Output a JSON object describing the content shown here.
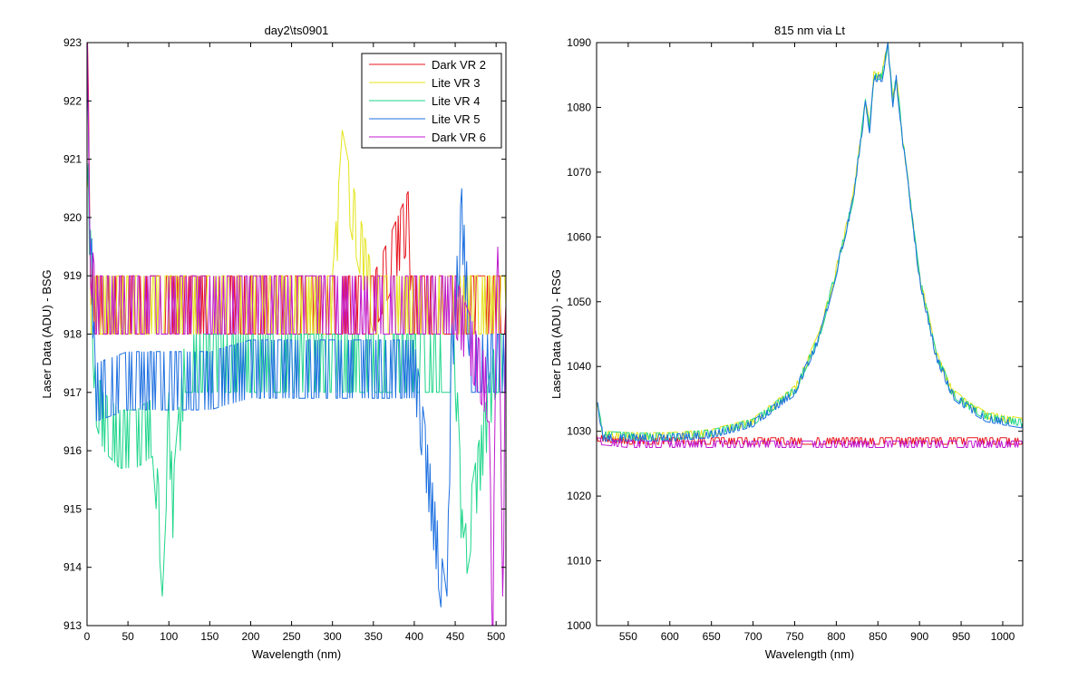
{
  "chart_data": [
    {
      "type": "line",
      "title": "day2\\ts0901",
      "xlabel": "Wavelength (nm)",
      "ylabel": "Laser Data (ADU) - BSG",
      "xlim": [
        0,
        512
      ],
      "ylim": [
        913,
        923
      ],
      "xticks": [
        0,
        50,
        100,
        150,
        200,
        250,
        300,
        350,
        400,
        450,
        500
      ],
      "yticks": [
        913,
        914,
        915,
        916,
        917,
        918,
        919,
        920,
        921,
        922,
        923
      ],
      "legend": "top-right",
      "series": [
        {
          "name": "Dark VR 2",
          "color": "#e8141e",
          "x": [
            0,
            5,
            10,
            50,
            100,
            150,
            200,
            250,
            300,
            350,
            394,
            396,
            420,
            450,
            512
          ],
          "y": [
            923,
            919,
            918.5,
            918.5,
            918.5,
            918.5,
            918.5,
            918.5,
            918.5,
            918.5,
            920,
            918.5,
            918.5,
            918.5,
            918.5
          ]
        },
        {
          "name": "Lite VR 3",
          "color": "#e4e419",
          "x": [
            0,
            5,
            10,
            50,
            100,
            150,
            200,
            250,
            300,
            312,
            326,
            350,
            400,
            450,
            512
          ],
          "y": [
            921,
            918.5,
            918.5,
            918.5,
            918.5,
            918.5,
            918.5,
            918.5,
            918.5,
            921,
            920,
            918.5,
            918.5,
            918.5,
            918.5
          ]
        },
        {
          "name": "Lite VR 4",
          "color": "#1dd68a",
          "x": [
            0,
            10,
            20,
            40,
            60,
            80,
            92,
            100,
            105,
            120,
            150,
            200,
            250,
            300,
            350,
            400,
            450,
            460,
            500,
            512
          ],
          "y": [
            921,
            917,
            916.5,
            916.2,
            916.2,
            916.4,
            914,
            916.5,
            915,
            917.5,
            917.5,
            917.5,
            917.5,
            917.5,
            917.5,
            917.5,
            917.5,
            914,
            917.5,
            917.5
          ]
        },
        {
          "name": "Lite VR 5",
          "color": "#1c6fe0",
          "x": [
            0,
            10,
            50,
            100,
            150,
            200,
            250,
            300,
            350,
            400,
            440,
            445,
            458,
            470,
            500,
            512
          ],
          "y": [
            922,
            917,
            917.2,
            917.2,
            917.2,
            917.4,
            917.4,
            917.4,
            917.4,
            917.4,
            913,
            917.4,
            920,
            917.5,
            917.5,
            917.5
          ]
        },
        {
          "name": "Dark VR 6",
          "color": "#c019d0",
          "x": [
            0,
            3,
            10,
            50,
            100,
            150,
            200,
            250,
            300,
            350,
            400,
            450,
            490,
            496,
            502,
            508,
            512
          ],
          "y": [
            923,
            919.5,
            918.5,
            918.5,
            918.5,
            918.5,
            918.5,
            918.5,
            918.5,
            918.5,
            918.5,
            918.5,
            917,
            913,
            920,
            913,
            918.5
          ]
        }
      ]
    },
    {
      "type": "line",
      "title": "815 nm via Lt",
      "xlabel": "Wavelength (nm)",
      "ylabel": "Laser Data (ADU) - RSG",
      "xlim": [
        512,
        1024
      ],
      "ylim": [
        1000,
        1090
      ],
      "xticks": [
        550,
        600,
        650,
        700,
        750,
        800,
        850,
        900,
        950,
        1000
      ],
      "yticks": [
        1000,
        1010,
        1020,
        1030,
        1040,
        1050,
        1060,
        1070,
        1080,
        1090
      ],
      "series": [
        {
          "name": "Dark VR 2",
          "color": "#e8141e",
          "x": [
            512,
            550,
            600,
            650,
            700,
            750,
            800,
            850,
            900,
            950,
            1000,
            1024
          ],
          "y": [
            1029,
            1028.5,
            1028.5,
            1028.5,
            1028.5,
            1028.5,
            1028.5,
            1028.5,
            1028.5,
            1028.5,
            1028.5,
            1028.5
          ]
        },
        {
          "name": "Lite VR 3",
          "color": "#e4e419",
          "x": [
            512,
            520,
            560,
            600,
            650,
            700,
            750,
            780,
            800,
            820,
            835,
            840,
            845,
            855,
            862,
            868,
            872,
            880,
            900,
            920,
            940,
            960,
            980,
            1000,
            1024
          ],
          "y": [
            1034,
            1029.5,
            1029.3,
            1029.3,
            1029.8,
            1031.5,
            1036.5,
            1045,
            1055,
            1066,
            1081,
            1077,
            1085,
            1085,
            1090,
            1081,
            1085,
            1075,
            1054,
            1042,
            1036,
            1034,
            1032.5,
            1032,
            1031.5
          ]
        },
        {
          "name": "Lite VR 4",
          "color": "#1dd68a",
          "x": [
            512,
            520,
            560,
            600,
            650,
            700,
            750,
            780,
            800,
            820,
            835,
            840,
            845,
            855,
            862,
            868,
            872,
            880,
            900,
            920,
            940,
            960,
            980,
            1000,
            1024
          ],
          "y": [
            1034.5,
            1029.5,
            1029.2,
            1029.2,
            1029.7,
            1031.4,
            1036.3,
            1044.8,
            1054.8,
            1065.8,
            1080.8,
            1076.8,
            1084.8,
            1084.8,
            1089.8,
            1080.8,
            1084.8,
            1074.8,
            1053.8,
            1041.8,
            1035.8,
            1033.8,
            1032.3,
            1031.8,
            1031.3
          ]
        },
        {
          "name": "Lite VR 5",
          "color": "#1c6fe0",
          "x": [
            512,
            520,
            560,
            600,
            650,
            700,
            750,
            780,
            800,
            820,
            835,
            840,
            845,
            855,
            862,
            868,
            872,
            880,
            900,
            920,
            940,
            960,
            980,
            1000,
            1024
          ],
          "y": [
            1035,
            1029,
            1029,
            1029,
            1029.5,
            1031.2,
            1036,
            1044.5,
            1054.5,
            1065.5,
            1080.5,
            1076.5,
            1084.5,
            1084.5,
            1089.5,
            1080.5,
            1084.5,
            1074.5,
            1053.5,
            1041.5,
            1035.5,
            1033.5,
            1032,
            1031.5,
            1031
          ]
        },
        {
          "name": "Dark VR 6",
          "color": "#c019d0",
          "x": [
            512,
            550,
            600,
            650,
            700,
            750,
            800,
            850,
            900,
            950,
            1000,
            1024
          ],
          "y": [
            1028.5,
            1028,
            1028,
            1028,
            1028,
            1028,
            1028,
            1028,
            1028,
            1028,
            1028,
            1028
          ]
        }
      ]
    }
  ]
}
